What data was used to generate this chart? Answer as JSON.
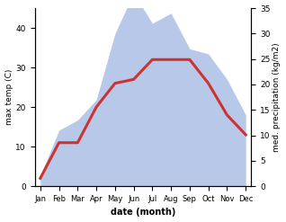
{
  "months": [
    "Jan",
    "Feb",
    "Mar",
    "Apr",
    "May",
    "Jun",
    "Jul",
    "Aug",
    "Sep",
    "Oct",
    "Nov",
    "Dec"
  ],
  "month_indices": [
    0,
    1,
    2,
    3,
    4,
    5,
    6,
    7,
    8,
    9,
    10,
    11
  ],
  "temperature": [
    2,
    11,
    11,
    20,
    26,
    27,
    32,
    32,
    32,
    26,
    18,
    13
  ],
  "precipitation": [
    2,
    11,
    13,
    17,
    30,
    38,
    32,
    34,
    27,
    26,
    21,
    14
  ],
  "temp_color": "#cc3333",
  "precip_fill_color": "#b8c8e8",
  "precip_alpha": 1.0,
  "xlabel": "date (month)",
  "ylabel_left": "max temp (C)",
  "ylabel_right": "med. precipitation (kg/m2)",
  "ylim_left": [
    0,
    45
  ],
  "ylim_right": [
    0,
    35
  ],
  "yticks_left": [
    0,
    10,
    20,
    30,
    40
  ],
  "yticks_right": [
    0,
    5,
    10,
    15,
    20,
    25,
    30,
    35
  ],
  "bg_color": "#ffffff",
  "linewidth": 2.2
}
